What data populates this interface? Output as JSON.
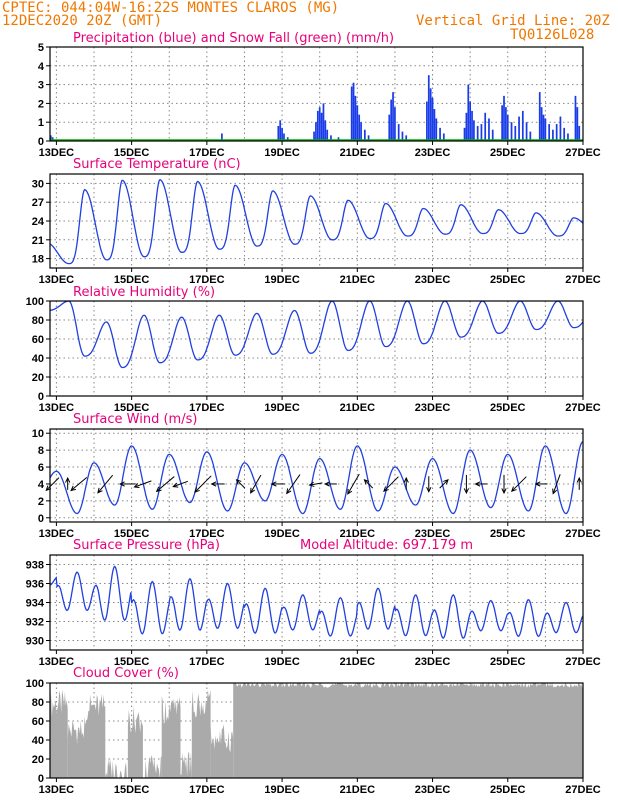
{
  "header": {
    "line1": "CPTEC:   044:04W-16:22S   MONTES CLAROS (MG)",
    "line2": "12DEC2020 20Z (GMT)",
    "grid_note": "Vertical Grid Line: 20Z",
    "code": "TQ0126L028"
  },
  "colors": {
    "header": "#f07800",
    "title": "#e8007a",
    "line": "#2040e0",
    "precip": "#1a3be8",
    "snow": "#00b000",
    "cloud": "#aaaaaa"
  },
  "x_axis": {
    "labels": [
      "13DEC",
      "15DEC",
      "17DEC",
      "19DEC",
      "21DEC",
      "23DEC",
      "25DEC",
      "27DEC"
    ],
    "label_days": [
      13,
      15,
      17,
      19,
      21,
      23,
      25,
      27
    ],
    "start_day": 12.83,
    "end_day": 27.0
  },
  "chart_data": [
    {
      "type": "bar",
      "title": "Precipitation (blue) and Snow Fall (green) (mm/h)",
      "ylim": [
        0,
        5
      ],
      "yticks": [
        0,
        1,
        2,
        3,
        4,
        5
      ],
      "series": [
        {
          "name": "Precipitation",
          "points": [
            [
              12.85,
              0.3
            ],
            [
              12.9,
              0.2
            ],
            [
              17.4,
              0.4
            ],
            [
              18.9,
              0.8
            ],
            [
              18.95,
              1.1
            ],
            [
              19.0,
              0.7
            ],
            [
              19.05,
              0.4
            ],
            [
              19.15,
              0.2
            ],
            [
              19.85,
              0.5
            ],
            [
              19.9,
              1.0
            ],
            [
              19.95,
              1.6
            ],
            [
              20.0,
              1.8
            ],
            [
              20.05,
              1.5
            ],
            [
              20.1,
              2.0
            ],
            [
              20.15,
              1.1
            ],
            [
              20.2,
              0.6
            ],
            [
              20.3,
              0.3
            ],
            [
              20.5,
              0.2
            ],
            [
              20.85,
              2.9
            ],
            [
              20.9,
              3.1
            ],
            [
              20.95,
              2.4
            ],
            [
              21.0,
              1.9
            ],
            [
              21.05,
              1.4
            ],
            [
              21.1,
              1.0
            ],
            [
              21.2,
              0.6
            ],
            [
              21.3,
              0.3
            ],
            [
              21.85,
              1.4
            ],
            [
              21.9,
              2.2
            ],
            [
              21.95,
              2.6
            ],
            [
              22.0,
              1.8
            ],
            [
              22.1,
              0.9
            ],
            [
              22.2,
              0.5
            ],
            [
              22.3,
              0.3
            ],
            [
              22.85,
              2.1
            ],
            [
              22.9,
              3.5
            ],
            [
              22.95,
              2.8
            ],
            [
              23.0,
              2.3
            ],
            [
              23.05,
              1.7
            ],
            [
              23.1,
              1.2
            ],
            [
              23.2,
              0.7
            ],
            [
              23.3,
              0.4
            ],
            [
              23.85,
              0.7
            ],
            [
              23.9,
              1.5
            ],
            [
              23.95,
              3.0
            ],
            [
              24.0,
              2.1
            ],
            [
              24.05,
              1.6
            ],
            [
              24.1,
              1.1
            ],
            [
              24.2,
              0.8
            ],
            [
              24.3,
              0.9
            ],
            [
              24.4,
              1.5
            ],
            [
              24.5,
              1.2
            ],
            [
              24.6,
              0.6
            ],
            [
              24.85,
              1.9
            ],
            [
              24.9,
              2.4
            ],
            [
              24.95,
              1.8
            ],
            [
              25.0,
              1.4
            ],
            [
              25.1,
              1.0
            ],
            [
              25.2,
              0.8
            ],
            [
              25.3,
              1.3
            ],
            [
              25.4,
              1.6
            ],
            [
              25.5,
              1.0
            ],
            [
              25.6,
              0.5
            ],
            [
              25.85,
              2.6
            ],
            [
              25.9,
              1.8
            ],
            [
              25.95,
              1.4
            ],
            [
              26.0,
              1.2
            ],
            [
              26.1,
              0.9
            ],
            [
              26.2,
              0.6
            ],
            [
              26.3,
              0.9
            ],
            [
              26.4,
              1.3
            ],
            [
              26.5,
              0.7
            ],
            [
              26.6,
              0.4
            ],
            [
              26.8,
              2.4
            ],
            [
              26.85,
              1.8
            ],
            [
              26.9,
              0.8
            ]
          ]
        },
        {
          "name": "Snow Fall",
          "points": []
        }
      ]
    },
    {
      "type": "line",
      "title": "Surface Temperature (nC)",
      "ylim": [
        16.5,
        31.5
      ],
      "yticks": [
        18,
        21,
        24,
        27,
        30
      ],
      "diurnal": {
        "min_time": 0.33,
        "max_time": 0.75,
        "rise_power": 1.6
      },
      "daily": [
        {
          "day": 12,
          "min": 20.5,
          "max": 20.5
        },
        {
          "day": 13,
          "min": 17.2,
          "max": 29.0
        },
        {
          "day": 14,
          "min": 17.8,
          "max": 30.5
        },
        {
          "day": 15,
          "min": 18.3,
          "max": 30.6
        },
        {
          "day": 16,
          "min": 19.0,
          "max": 30.3
        },
        {
          "day": 17,
          "min": 19.5,
          "max": 29.7
        },
        {
          "day": 18,
          "min": 20.0,
          "max": 28.8
        },
        {
          "day": 19,
          "min": 20.3,
          "max": 28.0
        },
        {
          "day": 20,
          "min": 21.0,
          "max": 27.3
        },
        {
          "day": 21,
          "min": 21.2,
          "max": 26.8
        },
        {
          "day": 22,
          "min": 21.6,
          "max": 26.0
        },
        {
          "day": 23,
          "min": 21.9,
          "max": 26.6
        },
        {
          "day": 24,
          "min": 22.0,
          "max": 25.8
        },
        {
          "day": 25,
          "min": 22.0,
          "max": 25.3
        },
        {
          "day": 26,
          "min": 21.6,
          "max": 24.5
        },
        {
          "day": 27,
          "min": 22.3,
          "max": 24.4
        }
      ]
    },
    {
      "type": "line",
      "title": "Relative Humidity (%)",
      "ylim": [
        0,
        100
      ],
      "yticks": [
        0,
        20,
        40,
        60,
        80,
        100
      ],
      "diurnal": {
        "min_time": 0.75,
        "max_time": 0.33,
        "rise_power": 1.3
      },
      "daily": [
        {
          "day": 12,
          "min": 90,
          "max": 95
        },
        {
          "day": 13,
          "min": 42,
          "max": 100
        },
        {
          "day": 14,
          "min": 30,
          "max": 78
        },
        {
          "day": 15,
          "min": 35,
          "max": 85
        },
        {
          "day": 16,
          "min": 38,
          "max": 83
        },
        {
          "day": 17,
          "min": 43,
          "max": 85
        },
        {
          "day": 18,
          "min": 44,
          "max": 87
        },
        {
          "day": 19,
          "min": 45,
          "max": 90
        },
        {
          "day": 20,
          "min": 48,
          "max": 100
        },
        {
          "day": 21,
          "min": 52,
          "max": 100
        },
        {
          "day": 22,
          "min": 55,
          "max": 100
        },
        {
          "day": 23,
          "min": 62,
          "max": 100
        },
        {
          "day": 24,
          "min": 66,
          "max": 100
        },
        {
          "day": 25,
          "min": 70,
          "max": 100
        },
        {
          "day": 26,
          "min": 72,
          "max": 100
        },
        {
          "day": 27,
          "min": 75,
          "max": 96
        }
      ]
    },
    {
      "type": "line",
      "title": "Surface Wind (m/s)",
      "ylim": [
        -0.5,
        10.5
      ],
      "yticks": [
        0,
        2,
        4,
        6,
        8,
        10
      ],
      "diurnal": {
        "min_time": 0.55,
        "max_time": 0.0,
        "rise_power": 1.0
      },
      "daily": [
        {
          "day": 12,
          "min": 3.0,
          "max": 4.0
        },
        {
          "day": 13,
          "min": 0.5,
          "max": 5.5
        },
        {
          "day": 14,
          "min": 1.5,
          "max": 6.5
        },
        {
          "day": 15,
          "min": 1.0,
          "max": 8.5
        },
        {
          "day": 16,
          "min": 1.8,
          "max": 7.5
        },
        {
          "day": 17,
          "min": 0.8,
          "max": 7.8
        },
        {
          "day": 18,
          "min": 2.0,
          "max": 6.5
        },
        {
          "day": 19,
          "min": 0.5,
          "max": 7.5
        },
        {
          "day": 20,
          "min": 1.0,
          "max": 7.0
        },
        {
          "day": 21,
          "min": 0.8,
          "max": 8.5
        },
        {
          "day": 22,
          "min": 1.5,
          "max": 6.0
        },
        {
          "day": 23,
          "min": 0.5,
          "max": 7.0
        },
        {
          "day": 24,
          "min": 1.2,
          "max": 8.0
        },
        {
          "day": 25,
          "min": 0.8,
          "max": 7.5
        },
        {
          "day": 26,
          "min": 0.5,
          "max": 8.5
        },
        {
          "day": 27,
          "min": 0.5,
          "max": 9.0
        }
      ],
      "arrows": [
        {
          "day": 12.9,
          "dir_deg": 225,
          "speed": 4
        },
        {
          "day": 13.3,
          "dir_deg": 0,
          "speed": 1.5
        },
        {
          "day": 13.6,
          "dir_deg": 230,
          "speed": 5
        },
        {
          "day": 14.3,
          "dir_deg": 220,
          "speed": 6
        },
        {
          "day": 14.9,
          "dir_deg": 270,
          "speed": 3
        },
        {
          "day": 15.3,
          "dir_deg": 250,
          "speed": 4
        },
        {
          "day": 15.9,
          "dir_deg": 230,
          "speed": 6
        },
        {
          "day": 16.3,
          "dir_deg": 250,
          "speed": 3
        },
        {
          "day": 16.9,
          "dir_deg": 225,
          "speed": 6
        },
        {
          "day": 17.3,
          "dir_deg": 270,
          "speed": 2
        },
        {
          "day": 17.9,
          "dir_deg": 315,
          "speed": 1.5
        },
        {
          "day": 18.3,
          "dir_deg": 210,
          "speed": 5
        },
        {
          "day": 18.9,
          "dir_deg": 270,
          "speed": 2
        },
        {
          "day": 19.3,
          "dir_deg": 215,
          "speed": 6
        },
        {
          "day": 19.9,
          "dir_deg": 260,
          "speed": 2
        },
        {
          "day": 20.3,
          "dir_deg": 270,
          "speed": 1.5
        },
        {
          "day": 20.9,
          "dir_deg": 210,
          "speed": 6
        },
        {
          "day": 21.3,
          "dir_deg": 315,
          "speed": 1.5
        },
        {
          "day": 21.9,
          "dir_deg": 225,
          "speed": 5
        },
        {
          "day": 22.3,
          "dir_deg": 0,
          "speed": 1.5
        },
        {
          "day": 22.9,
          "dir_deg": 180,
          "speed": 3
        },
        {
          "day": 23.3,
          "dir_deg": 45,
          "speed": 1.5
        },
        {
          "day": 23.9,
          "dir_deg": 180,
          "speed": 4
        },
        {
          "day": 24.3,
          "dir_deg": 270,
          "speed": 1.5
        },
        {
          "day": 24.9,
          "dir_deg": 180,
          "speed": 4
        },
        {
          "day": 25.3,
          "dir_deg": 225,
          "speed": 5
        },
        {
          "day": 25.9,
          "dir_deg": 270,
          "speed": 1.5
        },
        {
          "day": 26.3,
          "dir_deg": 200,
          "speed": 5
        },
        {
          "day": 26.9,
          "dir_deg": 0,
          "speed": 1.5
        }
      ]
    },
    {
      "type": "line",
      "title": "Surface Pressure (hPa)",
      "annotation": "Model Altitude: 697.179  m",
      "ylim": [
        929.0,
        939.0
      ],
      "yticks": [
        930,
        932,
        934,
        936,
        938
      ],
      "semidiurnal": true,
      "daily": [
        {
          "day": 12,
          "high": 937.2,
          "low": 935.6
        },
        {
          "day": 13,
          "high": 937.2,
          "low": 932.5
        },
        {
          "day": 14,
          "high": 937.8,
          "low": 931.2
        },
        {
          "day": 15,
          "high": 936.2,
          "low": 929.8
        },
        {
          "day": 16,
          "high": 936.5,
          "low": 930.2
        },
        {
          "day": 17,
          "high": 936.0,
          "low": 930.5
        },
        {
          "day": 18,
          "high": 935.5,
          "low": 930.0
        },
        {
          "day": 19,
          "high": 934.8,
          "low": 930.5
        },
        {
          "day": 20,
          "high": 934.5,
          "low": 929.8
        },
        {
          "day": 21,
          "high": 935.5,
          "low": 930.5
        },
        {
          "day": 22,
          "high": 934.8,
          "low": 929.8
        },
        {
          "day": 23,
          "high": 934.8,
          "low": 929.5
        },
        {
          "day": 24,
          "high": 934.2,
          "low": 930.5
        },
        {
          "day": 25,
          "high": 934.3,
          "low": 929.8
        },
        {
          "day": 26,
          "high": 934.0,
          "low": 930.3
        },
        {
          "day": 27,
          "high": 933.5,
          "low": 931.0
        }
      ]
    },
    {
      "type": "bar",
      "title": "Cloud Cover (%)",
      "ylim": [
        0,
        100
      ],
      "yticks": [
        0,
        20,
        40,
        60,
        80,
        100
      ],
      "segments": [
        {
          "from": 12.83,
          "to": 13.3,
          "level": 78
        },
        {
          "from": 13.3,
          "to": 13.8,
          "level": 50
        },
        {
          "from": 13.8,
          "to": 14.3,
          "level": 75
        },
        {
          "from": 14.3,
          "to": 14.9,
          "level": 8
        },
        {
          "from": 14.9,
          "to": 15.3,
          "level": 62
        },
        {
          "from": 15.3,
          "to": 15.8,
          "level": 10
        },
        {
          "from": 15.8,
          "to": 16.3,
          "level": 72
        },
        {
          "from": 16.3,
          "to": 16.6,
          "level": 15
        },
        {
          "from": 16.6,
          "to": 17.1,
          "level": 78
        },
        {
          "from": 17.1,
          "to": 17.7,
          "level": 42
        },
        {
          "from": 17.7,
          "to": 27.0,
          "level": 98
        }
      ]
    }
  ]
}
